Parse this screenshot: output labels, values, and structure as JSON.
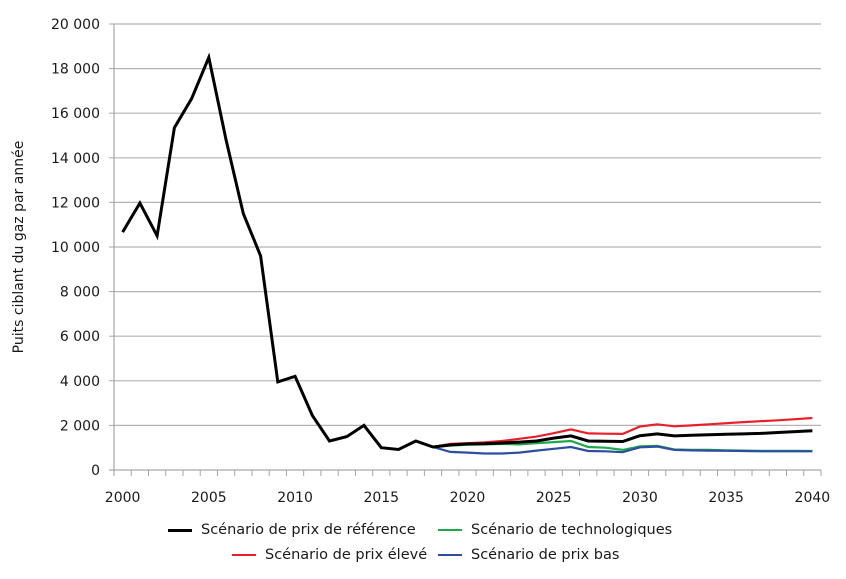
{
  "chart_data": {
    "type": "line",
    "title": "",
    "xlabel": "",
    "ylabel": "Puits ciblant du gaz par année",
    "ylim": [
      0,
      20000
    ],
    "yticks": [
      0,
      2000,
      4000,
      6000,
      8000,
      10000,
      12000,
      14000,
      16000,
      18000,
      20000
    ],
    "ytick_labels": [
      "0",
      "2 000",
      "4 000",
      "6 000",
      "8 000",
      "10 000",
      "12 000",
      "14 000",
      "16 000",
      "18 000",
      "20 000"
    ],
    "xtick_labels": [
      "2000",
      "2005",
      "2010",
      "2015",
      "2020",
      "2025",
      "2030",
      "2035",
      "2040"
    ],
    "grid": true,
    "legend_position": "bottom",
    "x": [
      2000,
      2001,
      2002,
      2003,
      2004,
      2005,
      2006,
      2007,
      2008,
      2009,
      2010,
      2011,
      2012,
      2013,
      2014,
      2015,
      2016,
      2017,
      2018,
      2019,
      2020,
      2021,
      2022,
      2023,
      2024,
      2025,
      2026,
      2027,
      2028,
      2029,
      2030,
      2031,
      2032,
      2033,
      2034,
      2035,
      2036,
      2037,
      2038,
      2039,
      2040
    ],
    "series": [
      {
        "name": "Scénario de prix élevé",
        "color": "#e8202a",
        "values": [
          null,
          null,
          null,
          null,
          null,
          null,
          null,
          null,
          null,
          null,
          null,
          null,
          null,
          null,
          null,
          null,
          920,
          1300,
          1030,
          1170,
          1200,
          1240,
          1300,
          1400,
          1500,
          1650,
          1820,
          1640,
          1630,
          1620,
          1950,
          2050,
          1960,
          2000,
          2050,
          2100,
          2150,
          2190,
          2230,
          2280,
          2330
        ]
      },
      {
        "name": "Scénario de technologiques",
        "color": "#1fa84a",
        "values": [
          null,
          null,
          null,
          null,
          null,
          null,
          null,
          null,
          null,
          null,
          null,
          null,
          null,
          null,
          null,
          null,
          920,
          1300,
          1030,
          1100,
          1130,
          1150,
          1170,
          1150,
          1200,
          1250,
          1300,
          1030,
          1000,
          900,
          1060,
          1080,
          920,
          900,
          900,
          880,
          870,
          860,
          860,
          860,
          850
        ]
      },
      {
        "name": "Scénario de prix bas",
        "color": "#2e4da0",
        "values": [
          null,
          null,
          null,
          null,
          null,
          null,
          null,
          null,
          null,
          null,
          null,
          null,
          null,
          null,
          null,
          null,
          920,
          1300,
          1030,
          810,
          780,
          740,
          740,
          780,
          870,
          950,
          1030,
          850,
          840,
          800,
          1020,
          1050,
          900,
          880,
          870,
          860,
          850,
          840,
          840,
          840,
          840
        ]
      },
      {
        "name": "Scénario de prix de référence",
        "color": "#000000",
        "values": [
          10670,
          11970,
          10500,
          15350,
          16650,
          18500,
          14800,
          11500,
          9600,
          3950,
          4200,
          2450,
          1300,
          1500,
          2000,
          1000,
          920,
          1300,
          1030,
          1120,
          1170,
          1180,
          1210,
          1250,
          1300,
          1430,
          1530,
          1300,
          1290,
          1280,
          1540,
          1620,
          1530,
          1560,
          1580,
          1600,
          1620,
          1640,
          1680,
          1720,
          1760
        ]
      }
    ]
  },
  "legend": {
    "items": [
      {
        "label": "Scénario de prix de référence",
        "color": "#000000"
      },
      {
        "label": "Scénario de technologiques",
        "color": "#1fa84a"
      },
      {
        "label": "Scénario de prix élevé",
        "color": "#e8202a"
      },
      {
        "label": "Scénario de prix bas",
        "color": "#2e4da0"
      }
    ]
  }
}
